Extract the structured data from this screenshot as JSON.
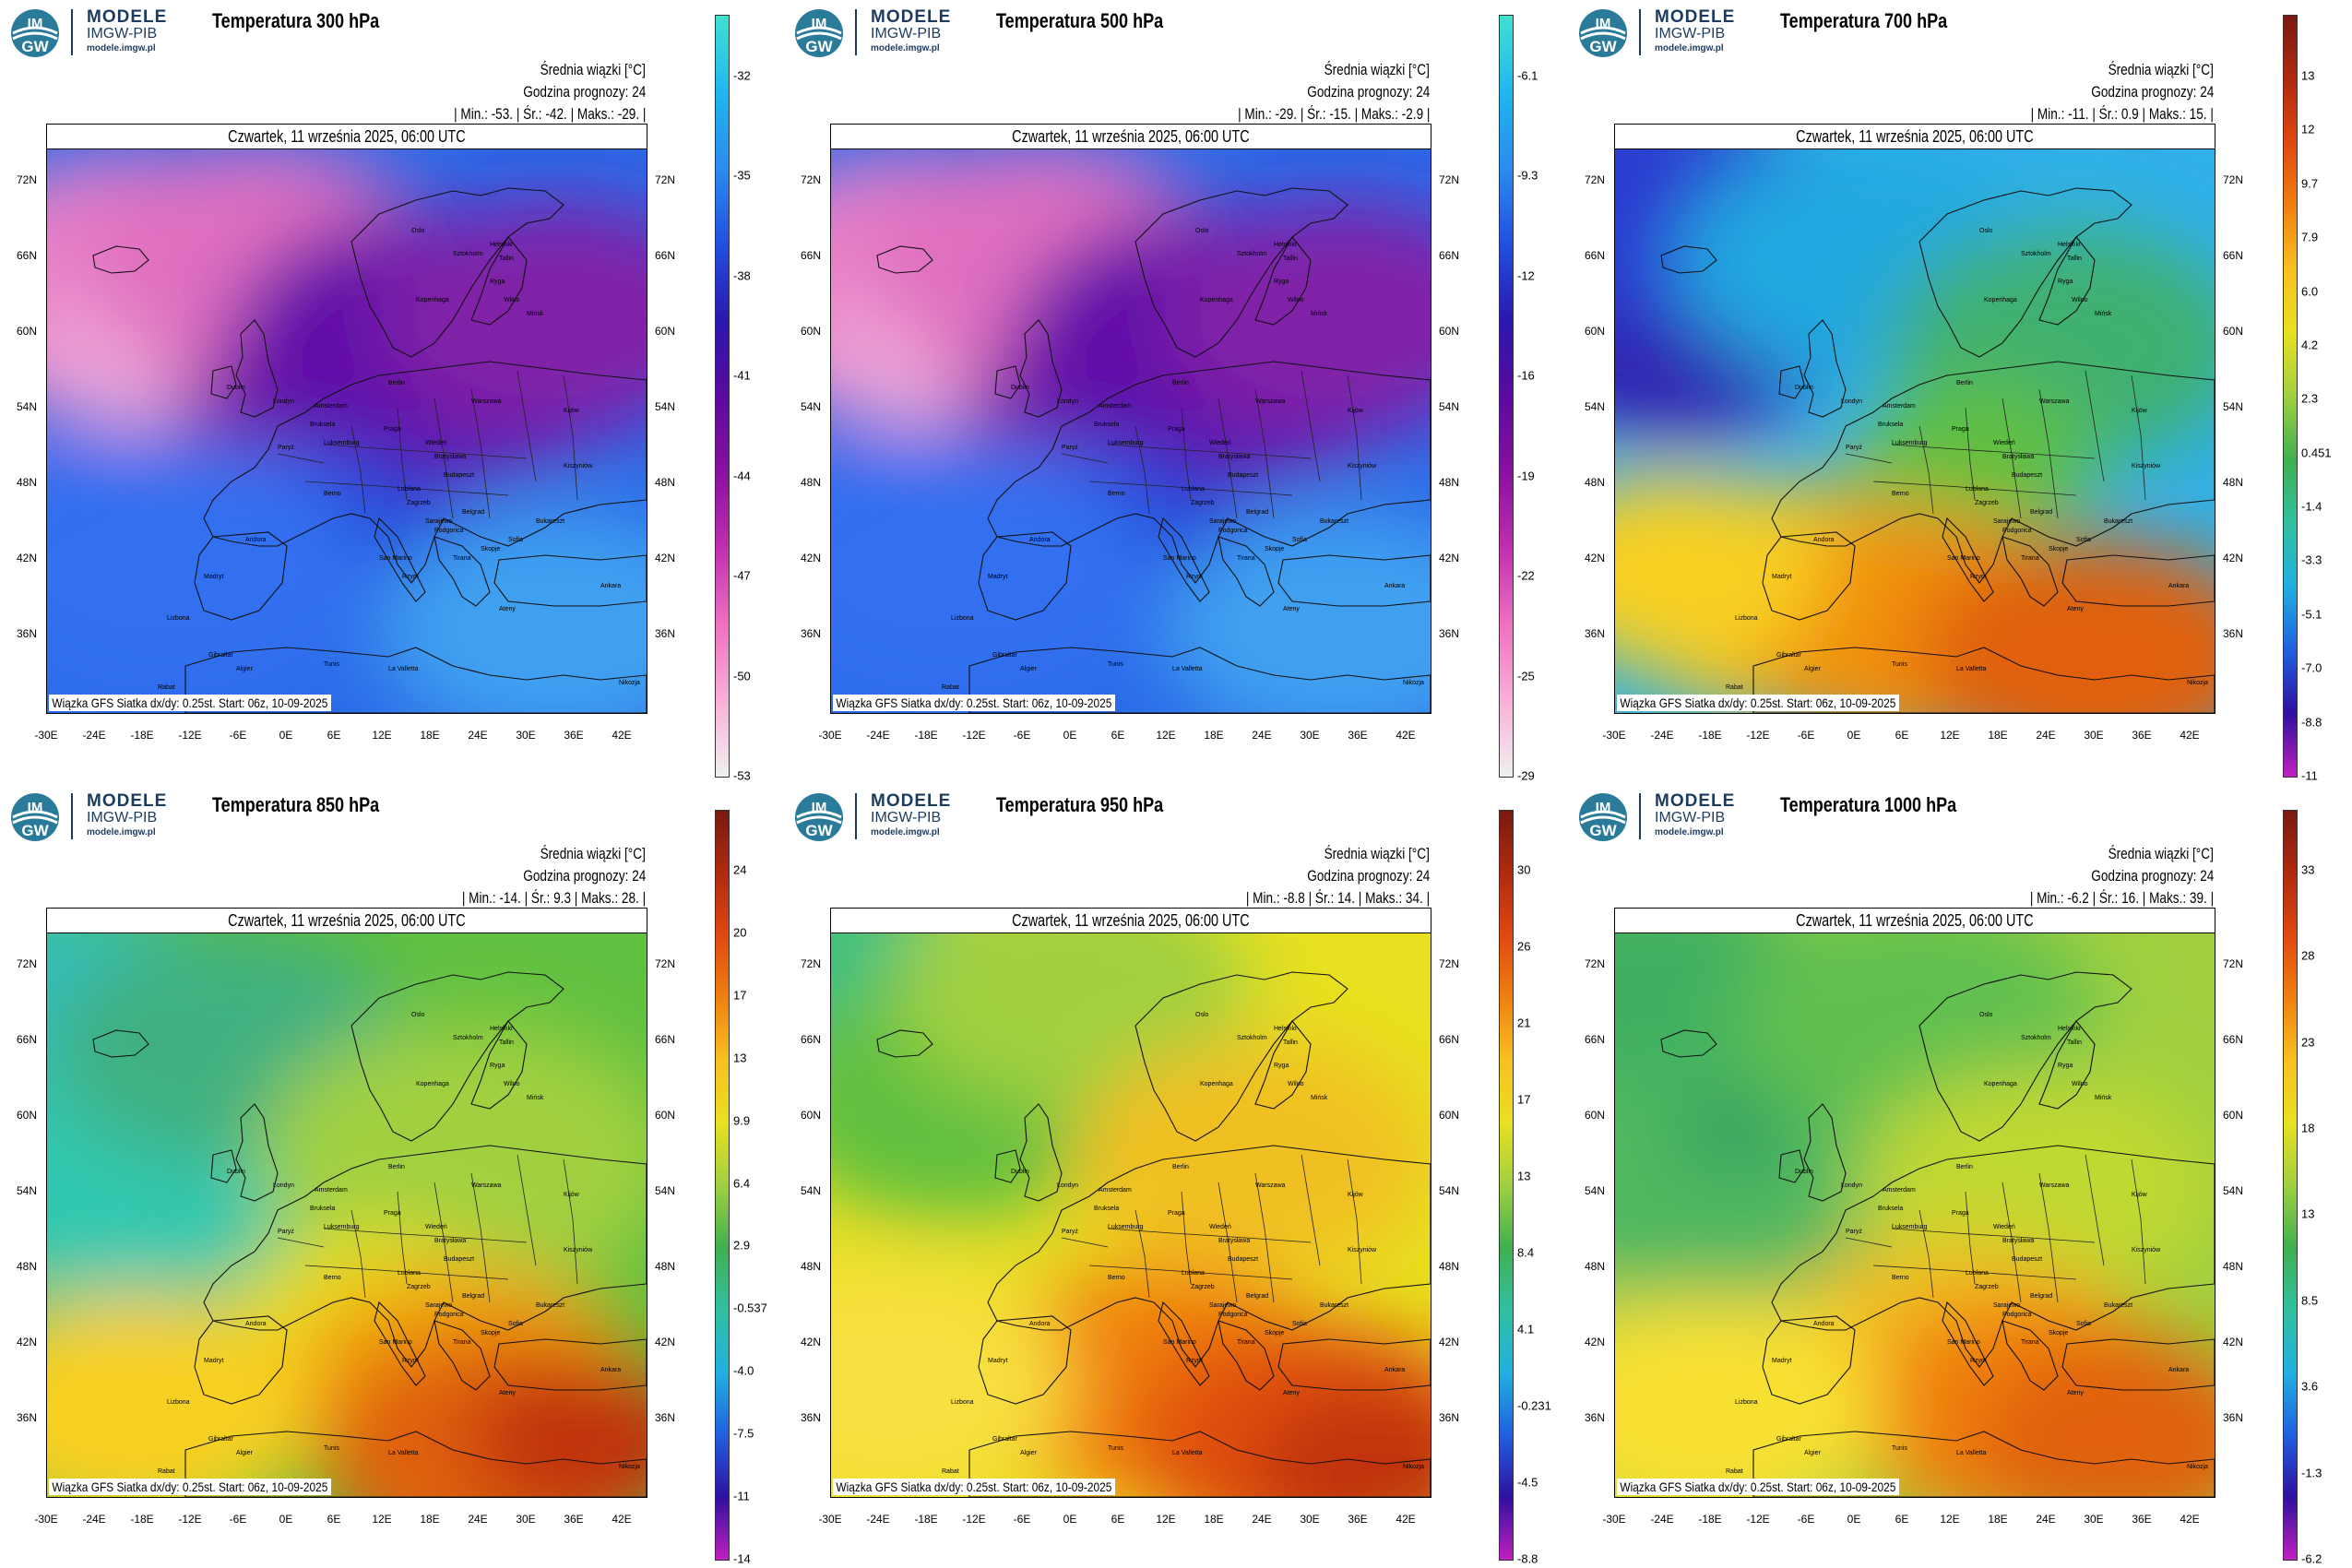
{
  "logo": {
    "line1": "MODELE",
    "line2": "IMGW-PIB",
    "line3": "modele.imgw.pl",
    "badge_top": "IM",
    "badge_bottom": "GW"
  },
  "common": {
    "info_title": "Średnia wiązki [°C]",
    "forecast_hour": "Godzina prognozy: 24",
    "date": "Czwartek, 11 września 2025, 06:00 UTC",
    "footer": "Wiązka GFS Siatka dx/dy: 0.25st. Start: 06z, 10-09-2025",
    "lat_ticks": [
      "72N",
      "66N",
      "60N",
      "54N",
      "48N",
      "42N",
      "36N"
    ],
    "lon_ticks": [
      "-30E",
      "-24E",
      "-18E",
      "-12E",
      "-6E",
      "0E",
      "6E",
      "12E",
      "18E",
      "24E",
      "30E",
      "36E",
      "42E"
    ],
    "cities": [
      "Oslo",
      "Sztokholm",
      "Helsinki",
      "Tallin",
      "Ryga",
      "Wilno",
      "Kopenhaga",
      "Mińsk",
      "Dublin",
      "Londyn",
      "Amsterdam",
      "Berlin",
      "Warszawa",
      "Kijów",
      "Bruksela",
      "Paryż",
      "Luksemburg",
      "Praga",
      "Wiedeń",
      "Bratysława",
      "Budapeszt",
      "Kiszyniów",
      "Berno",
      "Lublana",
      "Zagrzeb",
      "Belgrad",
      "Bukareszt",
      "Sarajewo",
      "Podgorica",
      "Sofia",
      "Skopje",
      "Tirana",
      "Rzym",
      "San Marino",
      "Ateny",
      "Ankara",
      "Andora",
      "Madryt",
      "Lizbona",
      "Gibraltar",
      "Algier",
      "Tunis",
      "Rabat",
      "La Valletta",
      "Nikozja"
    ]
  },
  "panels": [
    {
      "title": "Temperatura 300 hPa",
      "stats": "| Min.: -53. | Śr.: -42. | Maks.: -29. |",
      "scheme": "cold",
      "colorbar_labels": [
        "-32",
        "-35",
        "-38",
        "-41",
        "-44",
        "-47",
        "-50",
        "-53"
      ]
    },
    {
      "title": "Temperatura 500 hPa",
      "stats": "| Min.: -29. | Śr.: -15. | Maks.: -2.9 |",
      "scheme": "cold",
      "colorbar_labels": [
        "-6.1",
        "-9.3",
        "-12",
        "-16",
        "-19",
        "-22",
        "-25",
        "-29"
      ]
    },
    {
      "title": "Temperatura 700 hPa",
      "stats": "| Min.: -11. | Śr.: 0.9 | Maks.: 15. |",
      "scheme": "mid",
      "colorbar_labels": [
        "13",
        "12",
        "9.7",
        "7.9",
        "6.0",
        "4.2",
        "2.3",
        "0.451",
        "-1.4",
        "-3.3",
        "-5.1",
        "-7.0",
        "-8.8",
        "-11"
      ]
    },
    {
      "title": "Temperatura 850 hPa",
      "stats": "| Min.: -14. | Śr.: 9.3 | Maks.: 28. |",
      "scheme": "warm850",
      "colorbar_labels": [
        "24",
        "20",
        "17",
        "13",
        "9.9",
        "6.4",
        "2.9",
        "-0.537",
        "-4.0",
        "-7.5",
        "-11",
        "-14"
      ]
    },
    {
      "title": "Temperatura 950 hPa",
      "stats": "| Min.: -8.8 | Śr.: 14. | Maks.: 34. |",
      "scheme": "warm950",
      "colorbar_labels": [
        "30",
        "26",
        "21",
        "17",
        "13",
        "8.4",
        "4.1",
        "-0.231",
        "-4.5",
        "-8.8"
      ]
    },
    {
      "title": "Temperatura 1000 hPa",
      "stats": "| Min.: -6.2 | Śr.: 16. | Maks.: 39. |",
      "scheme": "warm1000",
      "colorbar_labels": [
        "33",
        "28",
        "23",
        "18",
        "13",
        "8.5",
        "3.6",
        "-1.3",
        "-6.2"
      ]
    }
  ],
  "colors": {
    "cold_bar": [
      "#40e0d0",
      "#1fb7f0",
      "#2a8cf0",
      "#2250e0",
      "#2a18b0",
      "#5a0aa0",
      "#8a10a0",
      "#c030b0",
      "#f070c0",
      "#f8b0d8",
      "#f0f0f0"
    ],
    "warm_bar": [
      "#7a1a10",
      "#b02a10",
      "#e04810",
      "#f08010",
      "#f8c020",
      "#e8e020",
      "#a0d040",
      "#40b050",
      "#30c0a0",
      "#20b0e0",
      "#2060e0",
      "#3010a0",
      "#c020c0"
    ]
  }
}
